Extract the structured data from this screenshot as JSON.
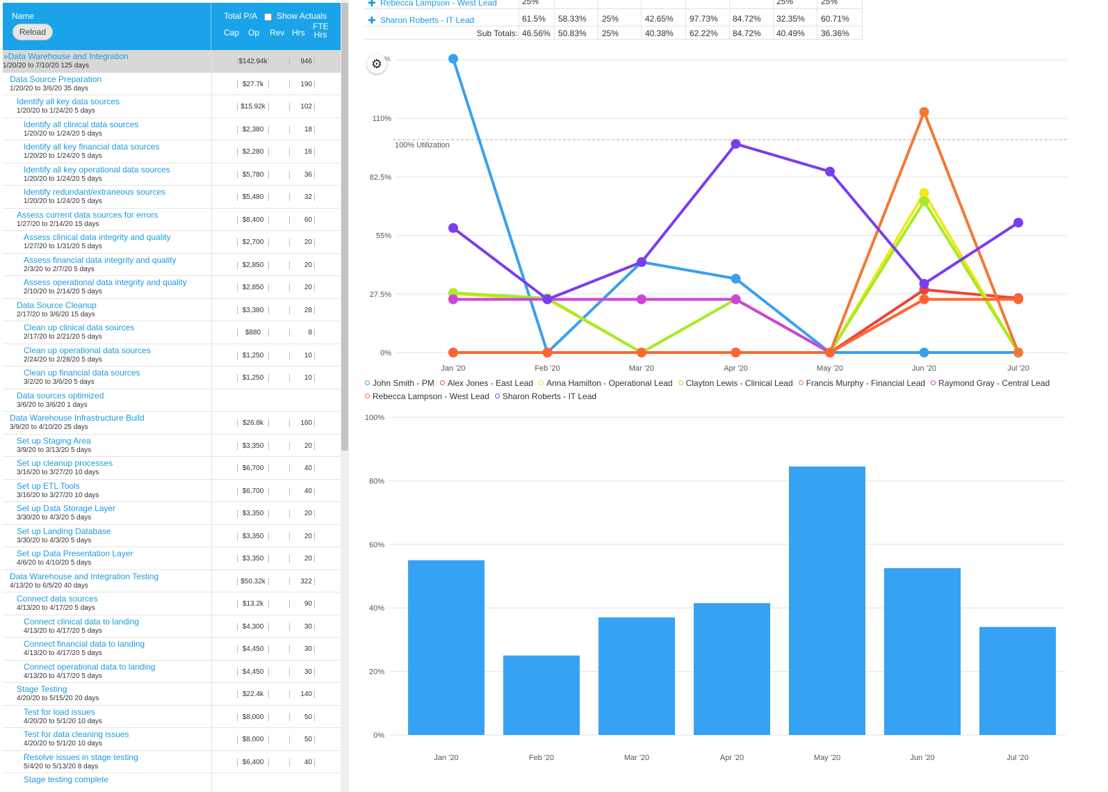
{
  "grid": {
    "header": {
      "name": "Name",
      "reload": "Reload",
      "total": "Total P/A",
      "show_actuals": "Show Actuals",
      "cols": [
        "Cap",
        "Op",
        "Rev",
        "Hrs"
      ],
      "fte": "FTE",
      "fte_hrs": "Hrs"
    },
    "rows": [
      {
        "name": "»Data Warehouse and Integration",
        "dates": "1/20/20 to 7/10/20 125 days",
        "cost": "$142.94k",
        "hrs": "946",
        "level": 0
      },
      {
        "name": "Data Source Preparation",
        "dates": "1/20/20 to 3/6/20 35 days",
        "cost": "$27.7k",
        "hrs": "190",
        "level": 1
      },
      {
        "name": "Identify all key data sources",
        "dates": "1/20/20 to 1/24/20 5 days",
        "cost": "$15.92k",
        "hrs": "102",
        "level": 2
      },
      {
        "name": "Identify all clinical data sources",
        "dates": "1/20/20 to 1/24/20 5 days",
        "cost": "$2,380",
        "hrs": "18",
        "level": 3
      },
      {
        "name": "Identify all key financial data sources",
        "dates": "1/20/20 to 1/24/20 5 days",
        "cost": "$2,280",
        "hrs": "16",
        "level": 3
      },
      {
        "name": "Identify all key operational data sources",
        "dates": "1/20/20 to 1/24/20 5 days",
        "cost": "$5,780",
        "hrs": "36",
        "level": 3
      },
      {
        "name": "Identify redundant/extraneous sources",
        "dates": "1/20/20 to 1/24/20 5 days",
        "cost": "$5,480",
        "hrs": "32",
        "level": 3
      },
      {
        "name": "Assess current data sources for errors",
        "dates": "1/27/20 to 2/14/20 15 days",
        "cost": "$8,400",
        "hrs": "60",
        "level": 2
      },
      {
        "name": "Assess clinical data integrity and quality",
        "dates": "1/27/20 to 1/31/20 5 days",
        "cost": "$2,700",
        "hrs": "20",
        "level": 3
      },
      {
        "name": "Assess financial data integrity and quality",
        "dates": "2/3/20 to 2/7/20 5 days",
        "cost": "$2,850",
        "hrs": "20",
        "level": 3
      },
      {
        "name": "Assess operational data integrity and quality",
        "dates": "2/10/20 to 2/14/20 5 days",
        "cost": "$2,850",
        "hrs": "20",
        "level": 3
      },
      {
        "name": "Data Source Cleanup",
        "dates": "2/17/20 to 3/6/20 15 days",
        "cost": "$3,380",
        "hrs": "28",
        "level": 2
      },
      {
        "name": "Clean up clinical data sources",
        "dates": "2/17/20 to 2/21/20 5 days",
        "cost": "$880",
        "hrs": "8",
        "level": 3
      },
      {
        "name": "Clean up operational data sources",
        "dates": "2/24/20 to 2/28/20 5 days",
        "cost": "$1,250",
        "hrs": "10",
        "level": 3
      },
      {
        "name": "Clean up financial data sources",
        "dates": "3/2/20 to 3/6/20 5 days",
        "cost": "$1,250",
        "hrs": "10",
        "level": 3
      },
      {
        "name": "Data sources optimized",
        "dates": "3/6/20 to 3/6/20 1 days",
        "cost": "",
        "hrs": "",
        "level": 2
      },
      {
        "name": "Data Warehouse Infrastructure Build",
        "dates": "3/9/20 to 4/10/20 25 days",
        "cost": "$26.8k",
        "hrs": "160",
        "level": 1
      },
      {
        "name": "Set up Staging Area",
        "dates": "3/9/20 to 3/13/20 5 days",
        "cost": "$3,350",
        "hrs": "20",
        "level": 2
      },
      {
        "name": "Set up cleanup processes",
        "dates": "3/16/20 to 3/27/20 10 days",
        "cost": "$6,700",
        "hrs": "40",
        "level": 2
      },
      {
        "name": "Set up ETL Tools",
        "dates": "3/16/20 to 3/27/20 10 days",
        "cost": "$6,700",
        "hrs": "40",
        "level": 2
      },
      {
        "name": "Set up Data Storage Layer",
        "dates": "3/30/20 to 4/3/20 5 days",
        "cost": "$3,350",
        "hrs": "20",
        "level": 2
      },
      {
        "name": "Set up Landing Database",
        "dates": "3/30/20 to 4/3/20 5 days",
        "cost": "$3,350",
        "hrs": "20",
        "level": 2
      },
      {
        "name": "Set up Data Presentation Layer",
        "dates": "4/6/20 to 4/10/20 5 days",
        "cost": "$3,350",
        "hrs": "20",
        "level": 2
      },
      {
        "name": "Data Warehouse and Integration Testing",
        "dates": "4/13/20 to 6/5/20 40 days",
        "cost": "$50.32k",
        "hrs": "322",
        "level": 1
      },
      {
        "name": "Connect data sources",
        "dates": "4/13/20 to 4/17/20 5 days",
        "cost": "$13.2k",
        "hrs": "90",
        "level": 2
      },
      {
        "name": "Connect clinical data to landing",
        "dates": "4/13/20 to 4/17/20 5 days",
        "cost": "$4,300",
        "hrs": "30",
        "level": 3
      },
      {
        "name": "Connect financial data to landing",
        "dates": "4/13/20 to 4/17/20 5 days",
        "cost": "$4,450",
        "hrs": "30",
        "level": 3
      },
      {
        "name": "Connect operational data to landing",
        "dates": "4/13/20 to 4/17/20 5 days",
        "cost": "$4,450",
        "hrs": "30",
        "level": 3
      },
      {
        "name": "Stage Testing",
        "dates": "4/20/20 to 5/15/20 20 days",
        "cost": "$22.4k",
        "hrs": "140",
        "level": 2
      },
      {
        "name": "Test for load issues",
        "dates": "4/20/20 to 5/1/20 10 days",
        "cost": "$8,000",
        "hrs": "50",
        "level": 3
      },
      {
        "name": "Test for data cleaning issues",
        "dates": "4/20/20 to 5/1/20 10 days",
        "cost": "$8,000",
        "hrs": "50",
        "level": 3
      },
      {
        "name": "Resolve issues in stage testing",
        "dates": "5/4/20 to 5/13/20 8 days",
        "cost": "$6,400",
        "hrs": "40",
        "level": 3
      },
      {
        "name": "Stage testing complete",
        "dates": "",
        "cost": "",
        "hrs": "",
        "level": 3
      }
    ]
  },
  "summary": {
    "rows": [
      {
        "who": "Rebecca Lampson - West Lead",
        "values": [
          "25%",
          "",
          "",
          "",
          "",
          "",
          "25%",
          "25%"
        ]
      },
      {
        "who": "Sharon Roberts - IT Lead",
        "values": [
          "61.5%",
          "58.33%",
          "25%",
          "42.65%",
          "97.73%",
          "84.72%",
          "32.35%",
          "60.71%"
        ]
      }
    ],
    "subtotal_label": "Sub Totals:",
    "subtotals": [
      "46.56%",
      "50.83%",
      "25%",
      "40.38%",
      "62.22%",
      "84.72%",
      "40.49%",
      "36.36%"
    ]
  },
  "line_chart": {
    "settings_icon": "gear-icon",
    "clipped_label": "%",
    "reference_label": "100% Utilization",
    "chart_data": {
      "type": "line",
      "categories": [
        "Jan '20",
        "Feb '20",
        "Mar '20",
        "Apr '20",
        "May '20",
        "Jun '20",
        "Jul '20"
      ],
      "y_ticks": [
        "0%",
        "27.5%",
        "55%",
        "82.5%",
        "110%"
      ],
      "ylim": [
        0,
        137.5
      ],
      "reference_line": 100,
      "series": [
        {
          "name": "John Smith - PM",
          "color": "#3aa0ee",
          "values": [
            138,
            0,
            42.5,
            34.7,
            0,
            0,
            0
          ]
        },
        {
          "name": "Alex Jones - East Lead",
          "color": "#ee4433",
          "values": [
            0,
            0,
            0,
            0,
            0,
            29.5,
            25.5
          ]
        },
        {
          "name": "Anna Hamilton - Operational Lead",
          "color": "#f5e51e",
          "values": [
            27.5,
            25,
            0,
            25,
            0,
            75,
            0
          ]
        },
        {
          "name": "Clayton Lewis - Clinical Lead",
          "color": "#a6ea2a",
          "values": [
            28,
            25.5,
            0,
            25,
            0,
            71,
            0
          ]
        },
        {
          "name": "Francis Murphy - Financial Lead",
          "color": "#f27834",
          "values": [
            25,
            25,
            25,
            25,
            0,
            113,
            0
          ]
        },
        {
          "name": "Raymond Gray - Central Lead",
          "color": "#cc44dd",
          "values": [
            25,
            25,
            25,
            25,
            0,
            25,
            25
          ]
        },
        {
          "name": "Rebecca Lampson - West Lead",
          "color": "#ff6633",
          "values": [
            0,
            0,
            0,
            0,
            0,
            25,
            25
          ]
        },
        {
          "name": "Sharon Roberts - IT Lead",
          "color": "#7a3cf0",
          "values": [
            58.5,
            25,
            42.5,
            98,
            85,
            32.3,
            61
          ]
        }
      ]
    }
  },
  "bar_chart": {
    "chart_data": {
      "type": "bar",
      "categories": [
        "Jan '20",
        "Feb '20",
        "Mar '20",
        "Apr '20",
        "May '20",
        "Jun '20",
        "Jul '20"
      ],
      "values": [
        55,
        25,
        37,
        41.5,
        84.5,
        52.5,
        34
      ],
      "y_ticks": [
        "0%",
        "20%",
        "40%",
        "60%",
        "80%",
        "100%"
      ],
      "ylim": [
        0,
        100
      ],
      "color": "#35a2f4"
    }
  }
}
